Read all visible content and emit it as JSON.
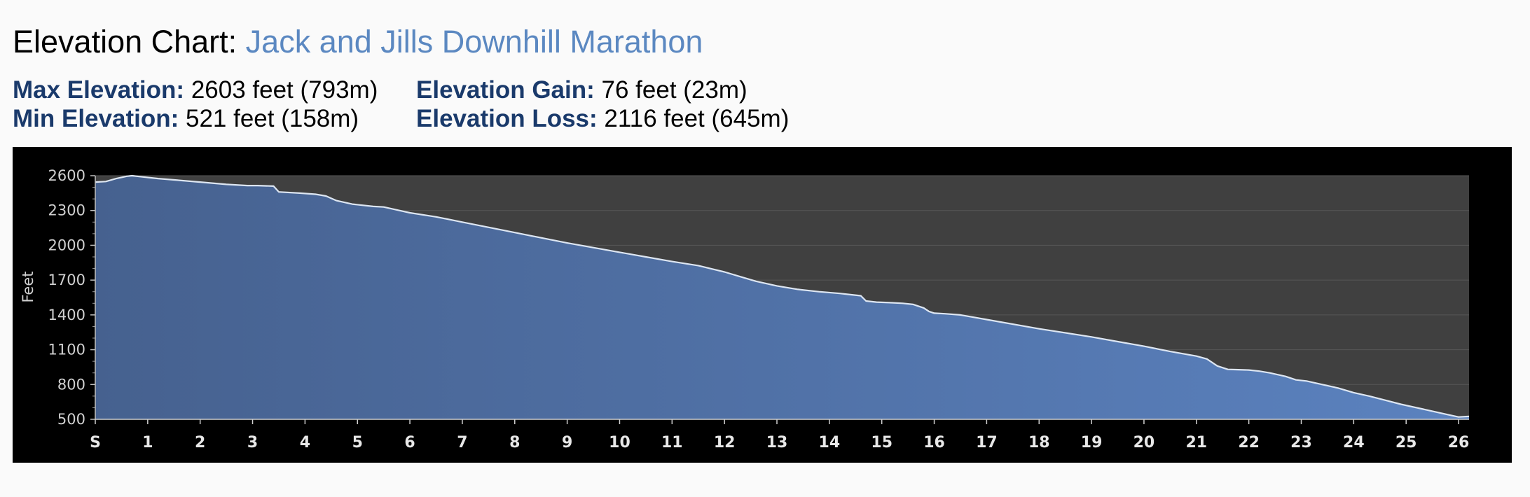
{
  "header": {
    "title_prefix": "Elevation Chart: ",
    "race_name": "Jack and Jills Downhill Marathon"
  },
  "stats": {
    "max_label": "Max Elevation:",
    "max_value": "2603 feet (793m)",
    "min_label": "Min Elevation:",
    "min_value": "521 feet (158m)",
    "gain_label": "Elevation Gain:",
    "gain_value": "76 feet (23m)",
    "loss_label": "Elevation Loss:",
    "loss_value": "2116 feet (645m)"
  },
  "colors": {
    "fill_start": "#46618f",
    "fill_end": "#5b82bf",
    "line": "#dde6f2",
    "plot_bg": "#404040",
    "frame_bg": "#000000",
    "accent": "#5b88c1"
  },
  "chart_data": {
    "type": "area",
    "title": "",
    "xlabel": "",
    "ylabel": "Feet",
    "ylim": [
      500,
      2600
    ],
    "xlim": [
      0,
      26.2
    ],
    "grid": true,
    "yticks": [
      500,
      800,
      1100,
      1400,
      1700,
      2000,
      2300,
      2600
    ],
    "xtick_values": [
      0,
      1,
      2,
      3,
      4,
      5,
      6,
      7,
      8,
      9,
      10,
      11,
      12,
      13,
      14,
      15,
      16,
      17,
      18,
      19,
      20,
      21,
      22,
      23,
      24,
      25,
      26
    ],
    "xtick_labels": [
      "S",
      "1",
      "2",
      "3",
      "4",
      "5",
      "6",
      "7",
      "8",
      "9",
      "10",
      "11",
      "12",
      "13",
      "14",
      "15",
      "16",
      "17",
      "18",
      "19",
      "20",
      "21",
      "22",
      "23",
      "24",
      "25",
      "26"
    ],
    "series": [
      {
        "x": [
          0,
          0.2,
          0.4,
          0.6,
          0.7,
          0.9,
          1.2,
          1.6,
          2.0,
          2.5,
          2.9,
          3.1,
          3.4,
          3.5,
          3.9,
          4.2,
          4.4,
          4.6,
          4.9,
          5.3,
          5.5,
          5.8,
          6.0,
          6.5,
          7.0,
          8.0,
          9.0,
          10.0,
          10.5,
          11.0,
          11.5,
          12.0,
          12.3,
          12.6,
          13.0,
          13.4,
          13.8,
          14.2,
          14.4,
          14.6,
          14.7,
          14.9,
          15.2,
          15.4,
          15.6,
          15.8,
          15.9,
          16.0,
          16.2,
          16.5,
          17.0,
          18.0,
          19.0,
          19.5,
          20.0,
          20.5,
          21.0,
          21.2,
          21.4,
          21.6,
          21.8,
          22.0,
          22.2,
          22.4,
          22.7,
          22.9,
          23.1,
          23.4,
          23.7,
          24.0,
          24.3,
          24.6,
          24.9,
          25.2,
          25.5,
          25.8,
          26.0,
          26.2
        ],
        "y": [
          2545,
          2550,
          2575,
          2595,
          2600,
          2590,
          2575,
          2560,
          2545,
          2525,
          2515,
          2515,
          2510,
          2460,
          2450,
          2440,
          2425,
          2385,
          2355,
          2335,
          2330,
          2300,
          2280,
          2245,
          2200,
          2110,
          2020,
          1940,
          1900,
          1860,
          1825,
          1770,
          1730,
          1690,
          1650,
          1620,
          1600,
          1585,
          1575,
          1565,
          1520,
          1510,
          1505,
          1500,
          1490,
          1460,
          1430,
          1415,
          1410,
          1400,
          1360,
          1280,
          1210,
          1170,
          1130,
          1085,
          1045,
          1020,
          960,
          930,
          928,
          925,
          915,
          900,
          870,
          840,
          830,
          800,
          770,
          730,
          700,
          665,
          630,
          600,
          570,
          540,
          520,
          525
        ]
      }
    ]
  }
}
